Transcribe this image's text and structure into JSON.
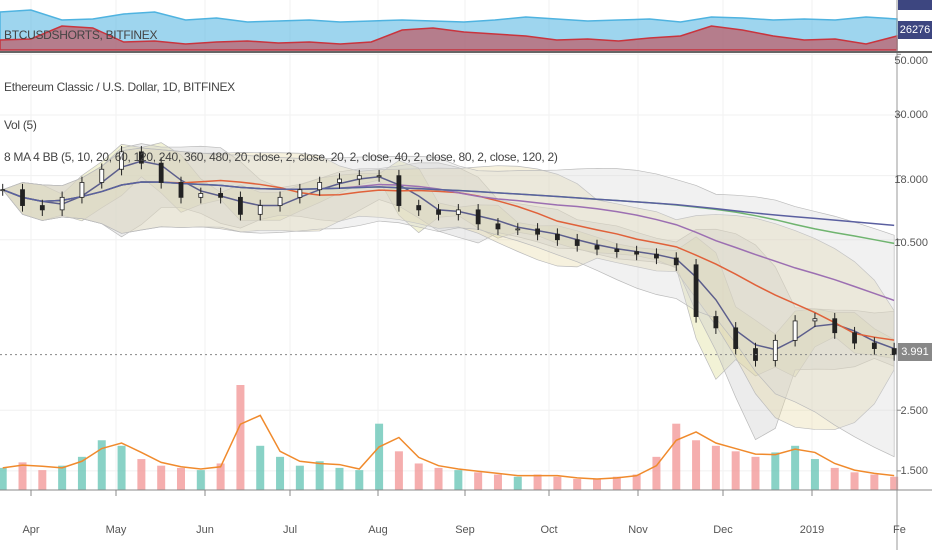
{
  "top_panel": {
    "symbol_label": "BTCUSDSHORTS, BITFINEX",
    "last_value": "26276",
    "colors": {
      "area_blue": "#4fb3e0",
      "area_red": "#c9343d"
    },
    "series_blue": [
      38,
      40,
      30,
      31,
      36,
      38,
      30,
      32,
      28,
      29,
      30,
      28,
      29,
      30,
      29,
      28,
      30,
      33,
      31,
      29,
      30,
      31,
      28,
      33,
      32,
      30,
      31,
      30,
      33,
      31
    ],
    "series_red": [
      10,
      11,
      24,
      22,
      8,
      9,
      6,
      8,
      9,
      7,
      8,
      6,
      8,
      20,
      22,
      18,
      16,
      14,
      10,
      11,
      9,
      12,
      14,
      24,
      20,
      14,
      10,
      11,
      6,
      14
    ]
  },
  "main_panel": {
    "title": "Ethereum Classic / U.S. Dollar, 1D, BITFINEX",
    "volume_label": "Vol (5)",
    "indicator_label": "8 MA 4 BB (5, 10, 20, 60, 120, 240, 360, 480, 20, close, 2, close, 20, 2, close, 40, 2, close, 80, 2, close, 120, 2)",
    "last_price": "3.991"
  },
  "price_axis": {
    "ticks": [
      "50.000",
      "30.000",
      "18.000",
      "10.500",
      "2.500",
      "1.500"
    ],
    "tick_values": [
      50,
      30,
      18,
      10.5,
      2.5,
      1.5
    ]
  },
  "time_axis": {
    "ticks": [
      "Apr",
      "May",
      "Jun",
      "Jul",
      "Aug",
      "Sep",
      "Oct",
      "Nov",
      "Dec",
      "2019",
      "Fe"
    ]
  },
  "chart_data": {
    "type": "line",
    "scale": "log",
    "ylim": [
      1.3,
      50
    ],
    "x": [
      "2018-03-22",
      "2018-03-29",
      "2018-04-05",
      "2018-04-12",
      "2018-04-19",
      "2018-04-26",
      "2018-05-03",
      "2018-05-10",
      "2018-05-17",
      "2018-05-24",
      "2018-05-31",
      "2018-06-07",
      "2018-06-14",
      "2018-06-21",
      "2018-06-28",
      "2018-07-05",
      "2018-07-12",
      "2018-07-19",
      "2018-07-26",
      "2018-08-02",
      "2018-08-09",
      "2018-08-16",
      "2018-08-23",
      "2018-08-30",
      "2018-09-06",
      "2018-09-13",
      "2018-09-20",
      "2018-09-27",
      "2018-10-04",
      "2018-10-11",
      "2018-10-18",
      "2018-10-25",
      "2018-11-01",
      "2018-11-08",
      "2018-11-15",
      "2018-11-22",
      "2018-11-29",
      "2018-12-06",
      "2018-12-13",
      "2018-12-20",
      "2018-12-27",
      "2019-01-03",
      "2019-01-10",
      "2019-01-17",
      "2019-01-24",
      "2019-01-31"
    ],
    "close": [
      16,
      14,
      13.5,
      15,
      17,
      19,
      22,
      20,
      17,
      15,
      15.5,
      15,
      13,
      14,
      15,
      16,
      17,
      17.5,
      18,
      18,
      14,
      13.5,
      13,
      13.5,
      12,
      11.5,
      11.5,
      11,
      10.5,
      10,
      9.7,
      9.5,
      9.3,
      9,
      8.5,
      5.5,
      5,
      4.2,
      3.8,
      4.5,
      5.3,
      5.4,
      4.8,
      4.4,
      4.2,
      3.991
    ],
    "volume": [
      20,
      25,
      18,
      22,
      30,
      45,
      40,
      28,
      22,
      20,
      18,
      24,
      95,
      40,
      30,
      22,
      26,
      20,
      18,
      60,
      35,
      24,
      20,
      18,
      16,
      14,
      12,
      14,
      12,
      10,
      10,
      12,
      14,
      30,
      60,
      45,
      40,
      35,
      30,
      34,
      40,
      28,
      20,
      16,
      14,
      12
    ],
    "ma_colors": [
      "#5c5e8c",
      "#e0613a",
      "#9c6fb2",
      "#6fb46f",
      "#5a5fa0"
    ],
    "band_colors": [
      "#d9d98a",
      "#c8c8c8",
      "#e6d7a0",
      "#d8d8d8"
    ]
  }
}
